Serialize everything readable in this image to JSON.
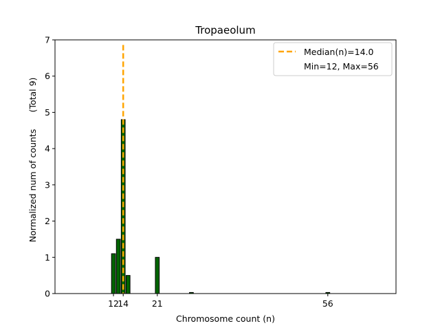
{
  "chart_data": {
    "type": "bar",
    "title": "Tropaeolum",
    "xlabel": "Chromosome count (n)",
    "ylabel": "Normalized num of counts",
    "ylabel_note": "(Total 9)",
    "xlim": [
      0,
      70
    ],
    "ylim": [
      0,
      7
    ],
    "yticks": [
      "0",
      "1",
      "2",
      "3",
      "4",
      "5",
      "6",
      "7"
    ],
    "xticks": [
      {
        "value": 12,
        "label": "12"
      },
      {
        "value": 14,
        "label": "14"
      },
      {
        "value": 21,
        "label": "21"
      },
      {
        "value": 56,
        "label": "56"
      }
    ],
    "bars": [
      {
        "x": 12,
        "value": 1.1
      },
      {
        "x": 13,
        "value": 1.5
      },
      {
        "x": 14,
        "value": 4.8
      },
      {
        "x": 15,
        "value": 0.5
      },
      {
        "x": 21,
        "value": 1.0
      },
      {
        "x": 28,
        "value": 0.03
      },
      {
        "x": 56,
        "value": 0.03
      }
    ],
    "bar_color": "#006400",
    "median": {
      "value": 14.0,
      "label": "Median(n)=14.0",
      "color": "#FFA500"
    },
    "legend": {
      "position": "top-right",
      "entries": [
        "Median(n)=14.0",
        "Min=12, Max=56"
      ]
    }
  }
}
